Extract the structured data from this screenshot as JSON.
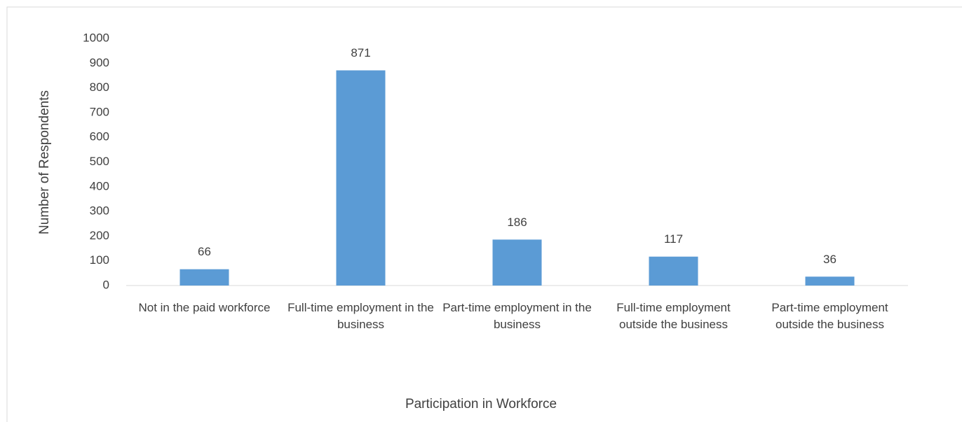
{
  "chart_data": {
    "type": "bar",
    "x_label": "Participation in Workforce",
    "y_label": "Number of Respondents",
    "categories": [
      "Not in the paid workforce",
      "Full-time employment in the business",
      "Part-time employment in the business",
      "Full-time employment outside the business",
      "Part-time employment outside the business"
    ],
    "values": [
      66,
      871,
      186,
      117,
      36
    ],
    "color": "#5b9bd5",
    "ylim": [
      0,
      1000
    ],
    "yticks": [
      0,
      100,
      200,
      300,
      400,
      500,
      600,
      700,
      800,
      900,
      1000
    ],
    "grid": false
  }
}
